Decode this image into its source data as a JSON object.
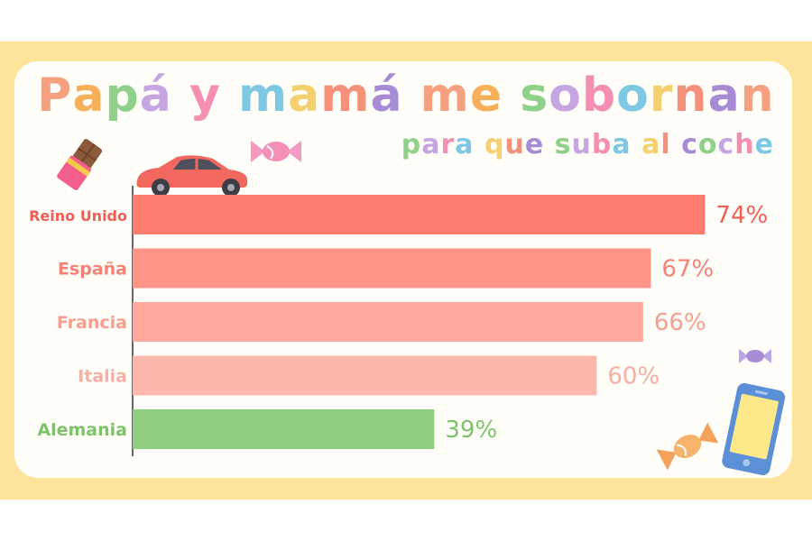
{
  "title": "Papá y mamá me sobornan",
  "subtitle": "para que suba al coche",
  "title_colors": [
    "#f5a07e",
    "#f7b05a",
    "#8fd08a",
    "#c6a6e0",
    "#f48fb1",
    "#7ec8e3",
    "#f4d06f",
    "#f5917b",
    "#a78bd4"
  ],
  "colors": {
    "frame": "#fde49a",
    "panel": "#fffef9",
    "axis": "#333333"
  },
  "icons": [
    "chocolate-icon",
    "car-icon",
    "candy-icon",
    "candy-small-icon",
    "phone-icon",
    "candy-orange-icon"
  ],
  "chart_data": {
    "type": "bar",
    "orientation": "horizontal",
    "categories": [
      "Reino Unido",
      "España",
      "Francia",
      "Italia",
      "Alemania"
    ],
    "values": [
      74,
      67,
      66,
      60,
      39
    ],
    "value_labels": [
      "74%",
      "67%",
      "66%",
      "60%",
      "39%"
    ],
    "unit": "%",
    "bar_colors": [
      "#fe7b6f",
      "#fe9487",
      "#fea99c",
      "#fdb8ad",
      "#8fcf7d"
    ],
    "label_colors": [
      "#ef5f55",
      "#f48375",
      "#f69f91",
      "#f7aea3",
      "#7cc36a"
    ],
    "xlim": [
      0,
      75
    ],
    "grid": false,
    "legend": "none"
  }
}
